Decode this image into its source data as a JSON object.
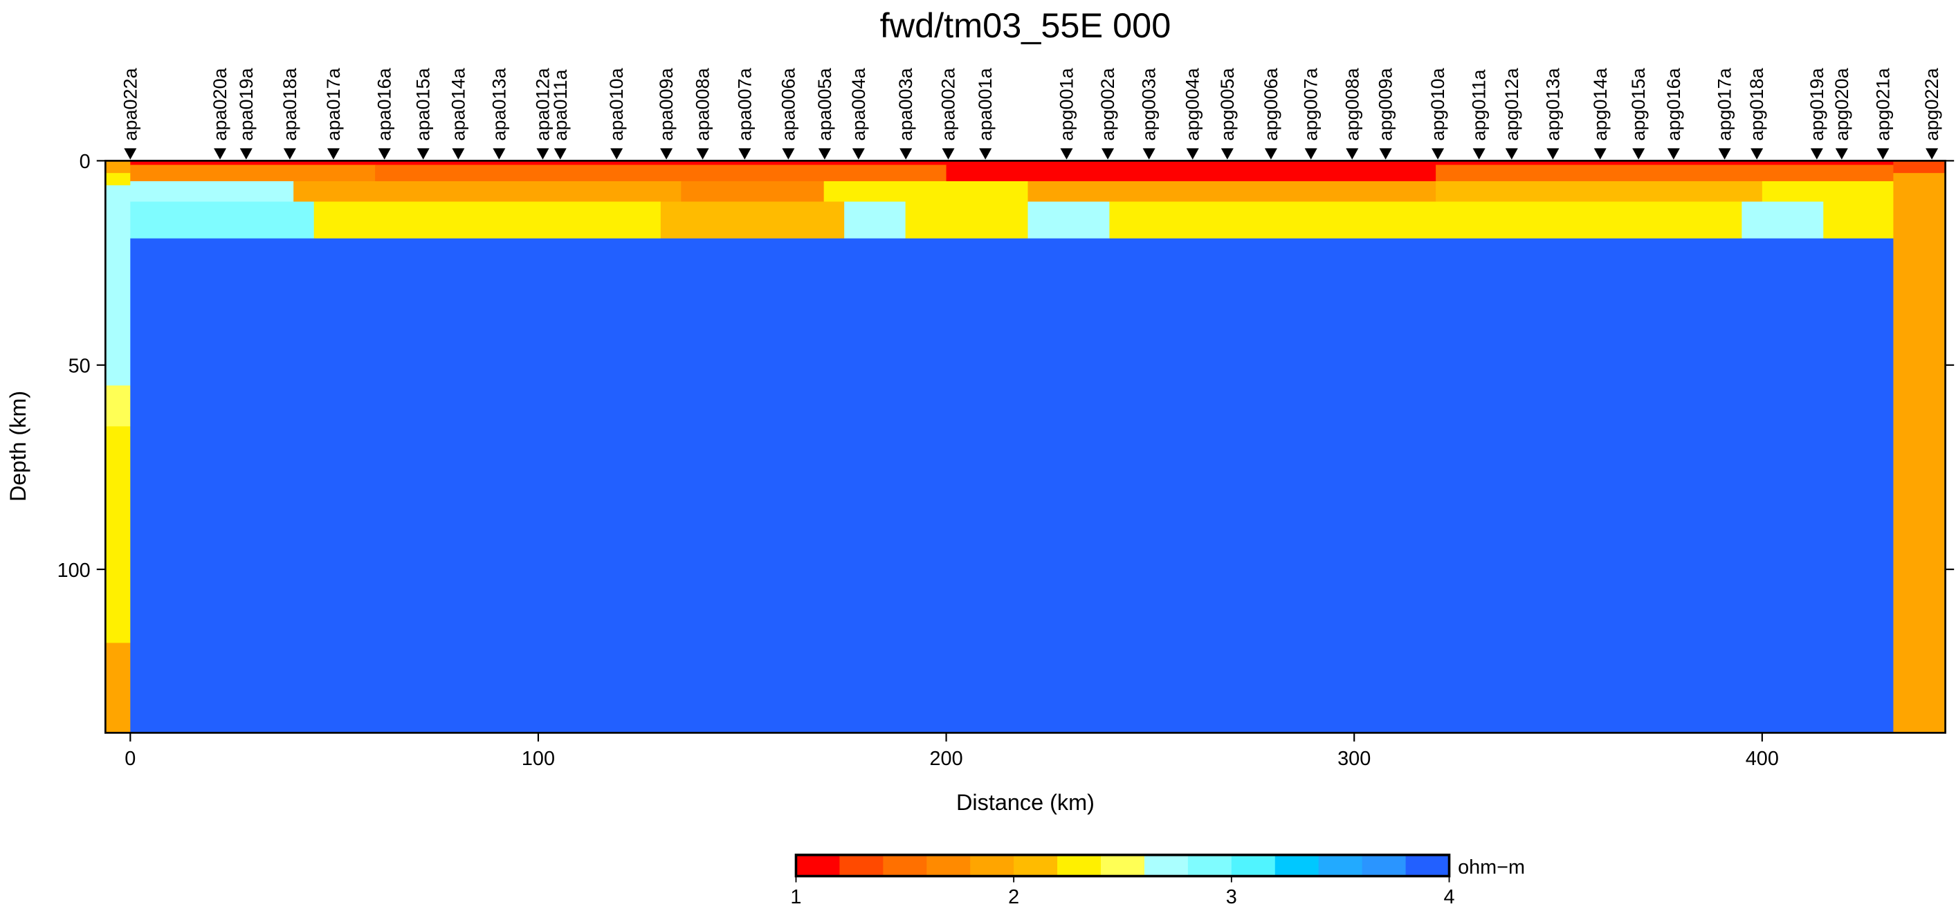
{
  "chart_data": {
    "type": "section",
    "title": "fwd/tm03_55E 000",
    "xlabel": "Distance (km)",
    "ylabel": "Depth (km)",
    "xlim": [
      -6.1,
      444.9
    ],
    "xticks": [
      0,
      100,
      200,
      300,
      400
    ],
    "ylim": [
      0,
      140
    ],
    "yticks": [
      0,
      50,
      100
    ],
    "y_inverted": true,
    "stations": {
      "names": [
        "apa022a",
        "apa020a",
        "apa019a",
        "apa018a",
        "apa017a",
        "apa016a",
        "apa015a",
        "apa014a",
        "apa013a",
        "apa012a",
        "apa011a",
        "apa010a",
        "apa009a",
        "apa008a",
        "apa007a",
        "apa006a",
        "apa005a",
        "apa004a",
        "apa003a",
        "apa002a",
        "apa001a",
        "apg001a",
        "apg002a",
        "apg003a",
        "apg004a",
        "apg005a",
        "apg006a",
        "apg007a",
        "apg008a",
        "apg009a",
        "apg010a",
        "apg011a",
        "apg012a",
        "apg013a",
        "apg014a",
        "apg015a",
        "apg016a",
        "apg017a",
        "apg018a",
        "apg019a",
        "apg020a",
        "apg021a",
        "apg022a"
      ],
      "x": [
        0,
        22,
        28.4,
        39.1,
        49.8,
        62.3,
        71.8,
        80.4,
        90.4,
        101.1,
        105.4,
        119.2,
        131.4,
        140.3,
        150.6,
        161.3,
        170.2,
        178.5,
        190.1,
        200.5,
        209.6,
        229.5,
        239.6,
        249.7,
        260.4,
        268.9,
        279.6,
        289.4,
        299.5,
        307.7,
        320.5,
        330.6,
        338.6,
        348.7,
        360.3,
        369.7,
        378.3,
        390.8,
        398.7,
        413.4,
        419.5,
        429.6,
        441.6
      ]
    },
    "cells": [
      {
        "x": [
          -6.1,
          0
        ],
        "z": [
          0,
          3
        ],
        "value": 1.9
      },
      {
        "x": [
          -6.1,
          0
        ],
        "z": [
          3,
          6
        ],
        "value": 2.3
      },
      {
        "x": [
          -6.1,
          0
        ],
        "z": [
          6,
          55
        ],
        "value": 2.7
      },
      {
        "x": [
          -6.1,
          0
        ],
        "z": [
          55,
          65
        ],
        "value": 2.5
      },
      {
        "x": [
          -6.1,
          0
        ],
        "z": [
          65,
          118
        ],
        "value": 2.3
      },
      {
        "x": [
          -6.1,
          0
        ],
        "z": [
          118,
          140
        ],
        "value": 1.9
      },
      {
        "x": [
          432,
          444.9
        ],
        "z": [
          0,
          3
        ],
        "value": 1.3
      },
      {
        "x": [
          432,
          444.9
        ],
        "z": [
          3,
          10
        ],
        "value": 1.8
      },
      {
        "x": [
          432,
          444.9
        ],
        "z": [
          10,
          140
        ],
        "value": 1.9
      },
      {
        "x": [
          0,
          432
        ],
        "z": [
          0,
          1
        ],
        "value": 1.1
      },
      {
        "x": [
          0,
          60
        ],
        "z": [
          1,
          5
        ],
        "value": 1.7
      },
      {
        "x": [
          60,
          200
        ],
        "z": [
          1,
          5
        ],
        "value": 1.5
      },
      {
        "x": [
          200,
          320
        ],
        "z": [
          1,
          5
        ],
        "value": 1.2
      },
      {
        "x": [
          320,
          432
        ],
        "z": [
          1,
          5
        ],
        "value": 1.5
      },
      {
        "x": [
          0,
          40
        ],
        "z": [
          5,
          10
        ],
        "value": 2.7
      },
      {
        "x": [
          40,
          135
        ],
        "z": [
          5,
          10
        ],
        "value": 1.9
      },
      {
        "x": [
          135,
          170
        ],
        "z": [
          5,
          10
        ],
        "value": 1.7
      },
      {
        "x": [
          170,
          220
        ],
        "z": [
          5,
          10
        ],
        "value": 2.3
      },
      {
        "x": [
          220,
          320
        ],
        "z": [
          5,
          10
        ],
        "value": 1.9
      },
      {
        "x": [
          320,
          400
        ],
        "z": [
          5,
          10
        ],
        "value": 2.0
      },
      {
        "x": [
          400,
          432
        ],
        "z": [
          5,
          10
        ],
        "value": 2.3
      },
      {
        "x": [
          0,
          45
        ],
        "z": [
          10,
          19
        ],
        "value": 2.9
      },
      {
        "x": [
          45,
          130
        ],
        "z": [
          10,
          19
        ],
        "value": 2.3
      },
      {
        "x": [
          130,
          175
        ],
        "z": [
          10,
          19
        ],
        "value": 2.0
      },
      {
        "x": [
          175,
          190
        ],
        "z": [
          10,
          19
        ],
        "value": 2.7
      },
      {
        "x": [
          190,
          220
        ],
        "z": [
          10,
          19
        ],
        "value": 2.4
      },
      {
        "x": [
          220,
          240
        ],
        "z": [
          10,
          19
        ],
        "value": 2.7
      },
      {
        "x": [
          240,
          300
        ],
        "z": [
          10,
          19
        ],
        "value": 2.3
      },
      {
        "x": [
          300,
          360
        ],
        "z": [
          10,
          19
        ],
        "value": 2.4
      },
      {
        "x": [
          360,
          395
        ],
        "z": [
          10,
          19
        ],
        "value": 2.3
      },
      {
        "x": [
          395,
          415
        ],
        "z": [
          10,
          19
        ],
        "value": 2.7
      },
      {
        "x": [
          415,
          432
        ],
        "z": [
          10,
          19
        ],
        "value": 2.3
      },
      {
        "x": [
          0,
          432
        ],
        "z": [
          19,
          140
        ],
        "value": 3.9
      }
    ],
    "colorbar": {
      "label": "ohm−m",
      "clim": [
        1,
        4
      ],
      "ticks": [
        1,
        2,
        3,
        4
      ],
      "colors": [
        "#ff0000",
        "#ff4a00",
        "#ff7000",
        "#ff8a00",
        "#ffa500",
        "#ffbb00",
        "#fff000",
        "#ffff55",
        "#aaffff",
        "#7ffcff",
        "#50f4ff",
        "#00c8ff",
        "#22aaff",
        "#2a95ff",
        "#2260ff"
      ]
    }
  }
}
